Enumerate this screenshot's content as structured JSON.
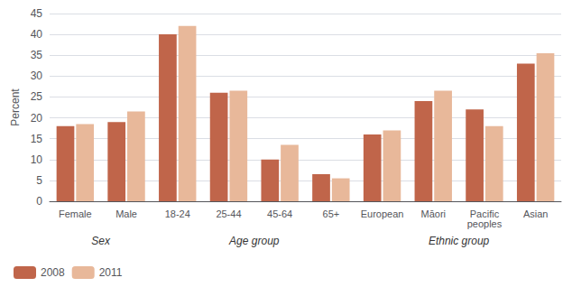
{
  "chart_data": {
    "type": "bar",
    "categories": [
      "Female",
      "Male",
      "18-24",
      "25-44",
      "45-64",
      "65+",
      "European",
      "Māori",
      "Pacific\npeoples",
      "Asian"
    ],
    "series": [
      {
        "name": "2008",
        "color": "#c0654a",
        "values": [
          18,
          19,
          40,
          26,
          10,
          6.5,
          16,
          24,
          22,
          33
        ]
      },
      {
        "name": "2011",
        "color": "#e8b89a",
        "values": [
          18.5,
          21.5,
          42,
          26.5,
          13.5,
          5.5,
          17,
          26.5,
          18,
          35.5
        ]
      }
    ],
    "ylabel": "Percent",
    "ylim": [
      0,
      45
    ],
    "yticks": [
      0,
      5,
      10,
      15,
      20,
      25,
      30,
      35,
      40,
      45
    ],
    "grid": true,
    "legend": "lower left",
    "annotations": [
      {
        "text": "Sex",
        "categories": [
          "Female",
          "Male"
        ]
      },
      {
        "text": "Age group",
        "categories": [
          "18-24",
          "25-44",
          "45-64",
          "65+"
        ]
      },
      {
        "text": "Ethnic group",
        "categories": [
          "European",
          "Māori",
          "Pacific\npeoples",
          "Asian"
        ]
      }
    ]
  }
}
